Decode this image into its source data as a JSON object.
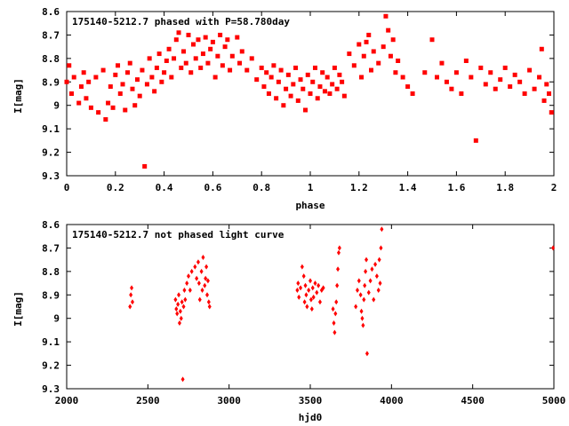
{
  "chart_data": [
    {
      "type": "scatter",
      "title": "175140-5212.7 phased with P=58.780day",
      "xlabel": "phase",
      "ylabel": "I[mag]",
      "xlim": [
        0,
        2
      ],
      "ylim": [
        9.3,
        8.6
      ],
      "y_inverted": true,
      "x_ticks": [
        "0",
        "0.2",
        "0.4",
        "0.6",
        "0.8",
        "1",
        "1.2",
        "1.4",
        "1.6",
        "1.8",
        "2"
      ],
      "y_ticks": [
        "8.6",
        "8.7",
        "8.8",
        "8.9",
        "9",
        "9.1",
        "9.2",
        "9.3"
      ],
      "marker_color": "#ff0000",
      "series": [
        {
          "x": [
            0.0,
            0.01,
            0.02,
            0.03,
            0.05,
            0.06,
            0.07,
            0.08,
            0.09,
            0.1,
            0.12,
            0.13,
            0.15,
            0.16,
            0.17,
            0.18,
            0.19,
            0.2,
            0.21,
            0.22,
            0.23,
            0.24,
            0.25,
            0.26,
            0.27,
            0.28,
            0.29,
            0.3,
            0.31,
            0.32,
            0.33,
            0.34,
            0.35,
            0.36,
            0.37,
            0.38,
            0.39,
            0.4,
            0.41,
            0.42,
            0.43,
            0.44,
            0.45,
            0.46,
            0.47,
            0.48,
            0.49,
            0.5,
            0.51,
            0.52,
            0.53,
            0.54,
            0.55,
            0.56,
            0.57,
            0.58,
            0.59,
            0.6,
            0.61,
            0.62,
            0.63,
            0.64,
            0.65,
            0.66,
            0.67,
            0.68,
            0.7,
            0.71,
            0.72,
            0.74,
            0.76,
            0.78,
            0.8,
            0.81,
            0.82,
            0.83,
            0.84,
            0.85,
            0.86,
            0.87,
            0.88,
            0.89,
            0.9,
            0.91,
            0.92,
            0.93,
            0.94,
            0.95,
            0.96,
            0.97,
            0.98,
            0.99,
            1.0,
            1.01,
            1.02,
            1.03,
            1.04,
            1.05,
            1.06,
            1.07,
            1.08,
            1.09,
            1.1,
            1.11,
            1.12,
            1.13,
            1.14,
            1.16,
            1.18,
            1.2,
            1.21,
            1.22,
            1.23,
            1.24,
            1.25,
            1.26,
            1.28,
            1.3,
            1.31,
            1.32,
            1.33,
            1.34,
            1.35,
            1.36,
            1.38,
            1.4,
            1.42,
            1.47,
            1.5,
            1.52,
            1.54,
            1.56,
            1.58,
            1.6,
            1.62,
            1.64,
            1.66,
            1.68,
            1.7,
            1.72,
            1.74,
            1.76,
            1.78,
            1.8,
            1.82,
            1.84,
            1.86,
            1.88,
            1.9,
            1.92,
            1.94,
            1.95,
            1.96,
            1.97,
            1.98,
            1.99
          ],
          "y": [
            8.9,
            8.83,
            8.95,
            8.88,
            8.99,
            8.92,
            8.86,
            8.97,
            8.9,
            9.01,
            8.88,
            9.03,
            8.85,
            9.06,
            8.99,
            8.92,
            9.01,
            8.87,
            8.83,
            8.95,
            8.91,
            9.02,
            8.86,
            8.82,
            8.93,
            9.0,
            8.89,
            8.96,
            8.85,
            9.26,
            8.91,
            8.8,
            8.88,
            8.94,
            8.84,
            8.78,
            8.9,
            8.86,
            8.81,
            8.76,
            8.88,
            8.8,
            8.72,
            8.69,
            8.84,
            8.77,
            8.82,
            8.7,
            8.86,
            8.74,
            8.8,
            8.72,
            8.84,
            8.78,
            8.71,
            8.82,
            8.76,
            8.73,
            8.88,
            8.79,
            8.7,
            8.83,
            8.75,
            8.72,
            8.85,
            8.79,
            8.71,
            8.82,
            8.77,
            8.85,
            8.8,
            8.89,
            8.84,
            8.92,
            8.86,
            8.95,
            8.88,
            8.83,
            8.97,
            8.9,
            8.85,
            9.0,
            8.93,
            8.87,
            8.96,
            8.91,
            8.84,
            8.98,
            8.89,
            8.93,
            9.02,
            8.87,
            8.95,
            8.9,
            8.84,
            8.97,
            8.92,
            8.86,
            8.94,
            8.88,
            8.95,
            8.91,
            8.84,
            8.93,
            8.87,
            8.9,
            8.96,
            8.78,
            8.83,
            8.74,
            8.88,
            8.79,
            8.73,
            8.7,
            8.85,
            8.77,
            8.82,
            8.75,
            8.62,
            8.68,
            8.79,
            8.72,
            8.86,
            8.81,
            8.88,
            8.92,
            8.95,
            8.86,
            8.72,
            8.88,
            8.82,
            8.9,
            8.93,
            8.86,
            8.95,
            8.81,
            8.88,
            9.15,
            8.84,
            8.91,
            8.86,
            8.93,
            8.89,
            8.84,
            8.92,
            8.87,
            8.9,
            8.95,
            8.85,
            8.93,
            8.88,
            8.76,
            8.98,
            8.91,
            8.95,
            9.03
          ]
        }
      ]
    },
    {
      "type": "scatter",
      "title": "175140-5212.7 not phased light curve",
      "xlabel": "hjd0",
      "ylabel": "I[mag]",
      "xlim": [
        2000,
        5000
      ],
      "ylim": [
        9.3,
        8.6
      ],
      "y_inverted": true,
      "x_ticks": [
        "2000",
        "2500",
        "3000",
        "3500",
        "4000",
        "4500",
        "5000"
      ],
      "y_ticks": [
        "8.6",
        "8.7",
        "8.8",
        "8.9",
        "9",
        "9.1",
        "9.2",
        "9.3"
      ],
      "marker_color": "#ff0000",
      "series": [
        {
          "x": [
            2390,
            2395,
            2400,
            2405,
            2670,
            2675,
            2680,
            2685,
            2690,
            2695,
            2700,
            2705,
            2710,
            2715,
            2720,
            2725,
            2730,
            2740,
            2750,
            2760,
            2770,
            2790,
            2800,
            2810,
            2815,
            2820,
            2830,
            2835,
            2840,
            2850,
            2855,
            2860,
            2865,
            2870,
            2875,
            2880,
            3420,
            3425,
            3430,
            3440,
            3450,
            3460,
            3465,
            3470,
            3475,
            3480,
            3490,
            3500,
            3505,
            3510,
            3515,
            3520,
            3530,
            3540,
            3550,
            3560,
            3570,
            3580,
            3640,
            3645,
            3650,
            3655,
            3660,
            3665,
            3670,
            3675,
            3680,
            3780,
            3790,
            3800,
            3810,
            3815,
            3820,
            3825,
            3830,
            3835,
            3840,
            3845,
            3850,
            3860,
            3870,
            3880,
            3890,
            3900,
            3910,
            3920,
            3925,
            3930,
            3935,
            3940,
            4995
          ],
          "y": [
            8.95,
            8.9,
            8.87,
            8.93,
            8.92,
            8.96,
            8.98,
            8.94,
            8.9,
            9.02,
            8.97,
            9.0,
            8.93,
            9.26,
            8.95,
            8.88,
            8.92,
            8.85,
            8.82,
            8.88,
            8.8,
            8.78,
            8.83,
            8.76,
            8.85,
            8.92,
            8.8,
            8.88,
            8.74,
            8.86,
            8.83,
            8.78,
            8.9,
            8.84,
            8.93,
            8.95,
            8.88,
            8.85,
            8.91,
            8.87,
            8.78,
            8.82,
            8.93,
            8.86,
            8.9,
            8.95,
            8.88,
            8.84,
            8.92,
            8.96,
            8.87,
            8.91,
            8.85,
            8.89,
            8.86,
            8.93,
            8.88,
            8.87,
            8.96,
            9.02,
            9.06,
            8.98,
            8.93,
            8.86,
            8.79,
            8.72,
            8.7,
            8.95,
            8.88,
            8.84,
            8.9,
            8.97,
            9.0,
            9.03,
            8.92,
            8.86,
            8.8,
            8.75,
            9.15,
            8.89,
            8.84,
            8.79,
            8.92,
            8.77,
            8.82,
            8.88,
            8.75,
            8.85,
            8.7,
            8.62,
            8.7
          ]
        }
      ]
    }
  ]
}
